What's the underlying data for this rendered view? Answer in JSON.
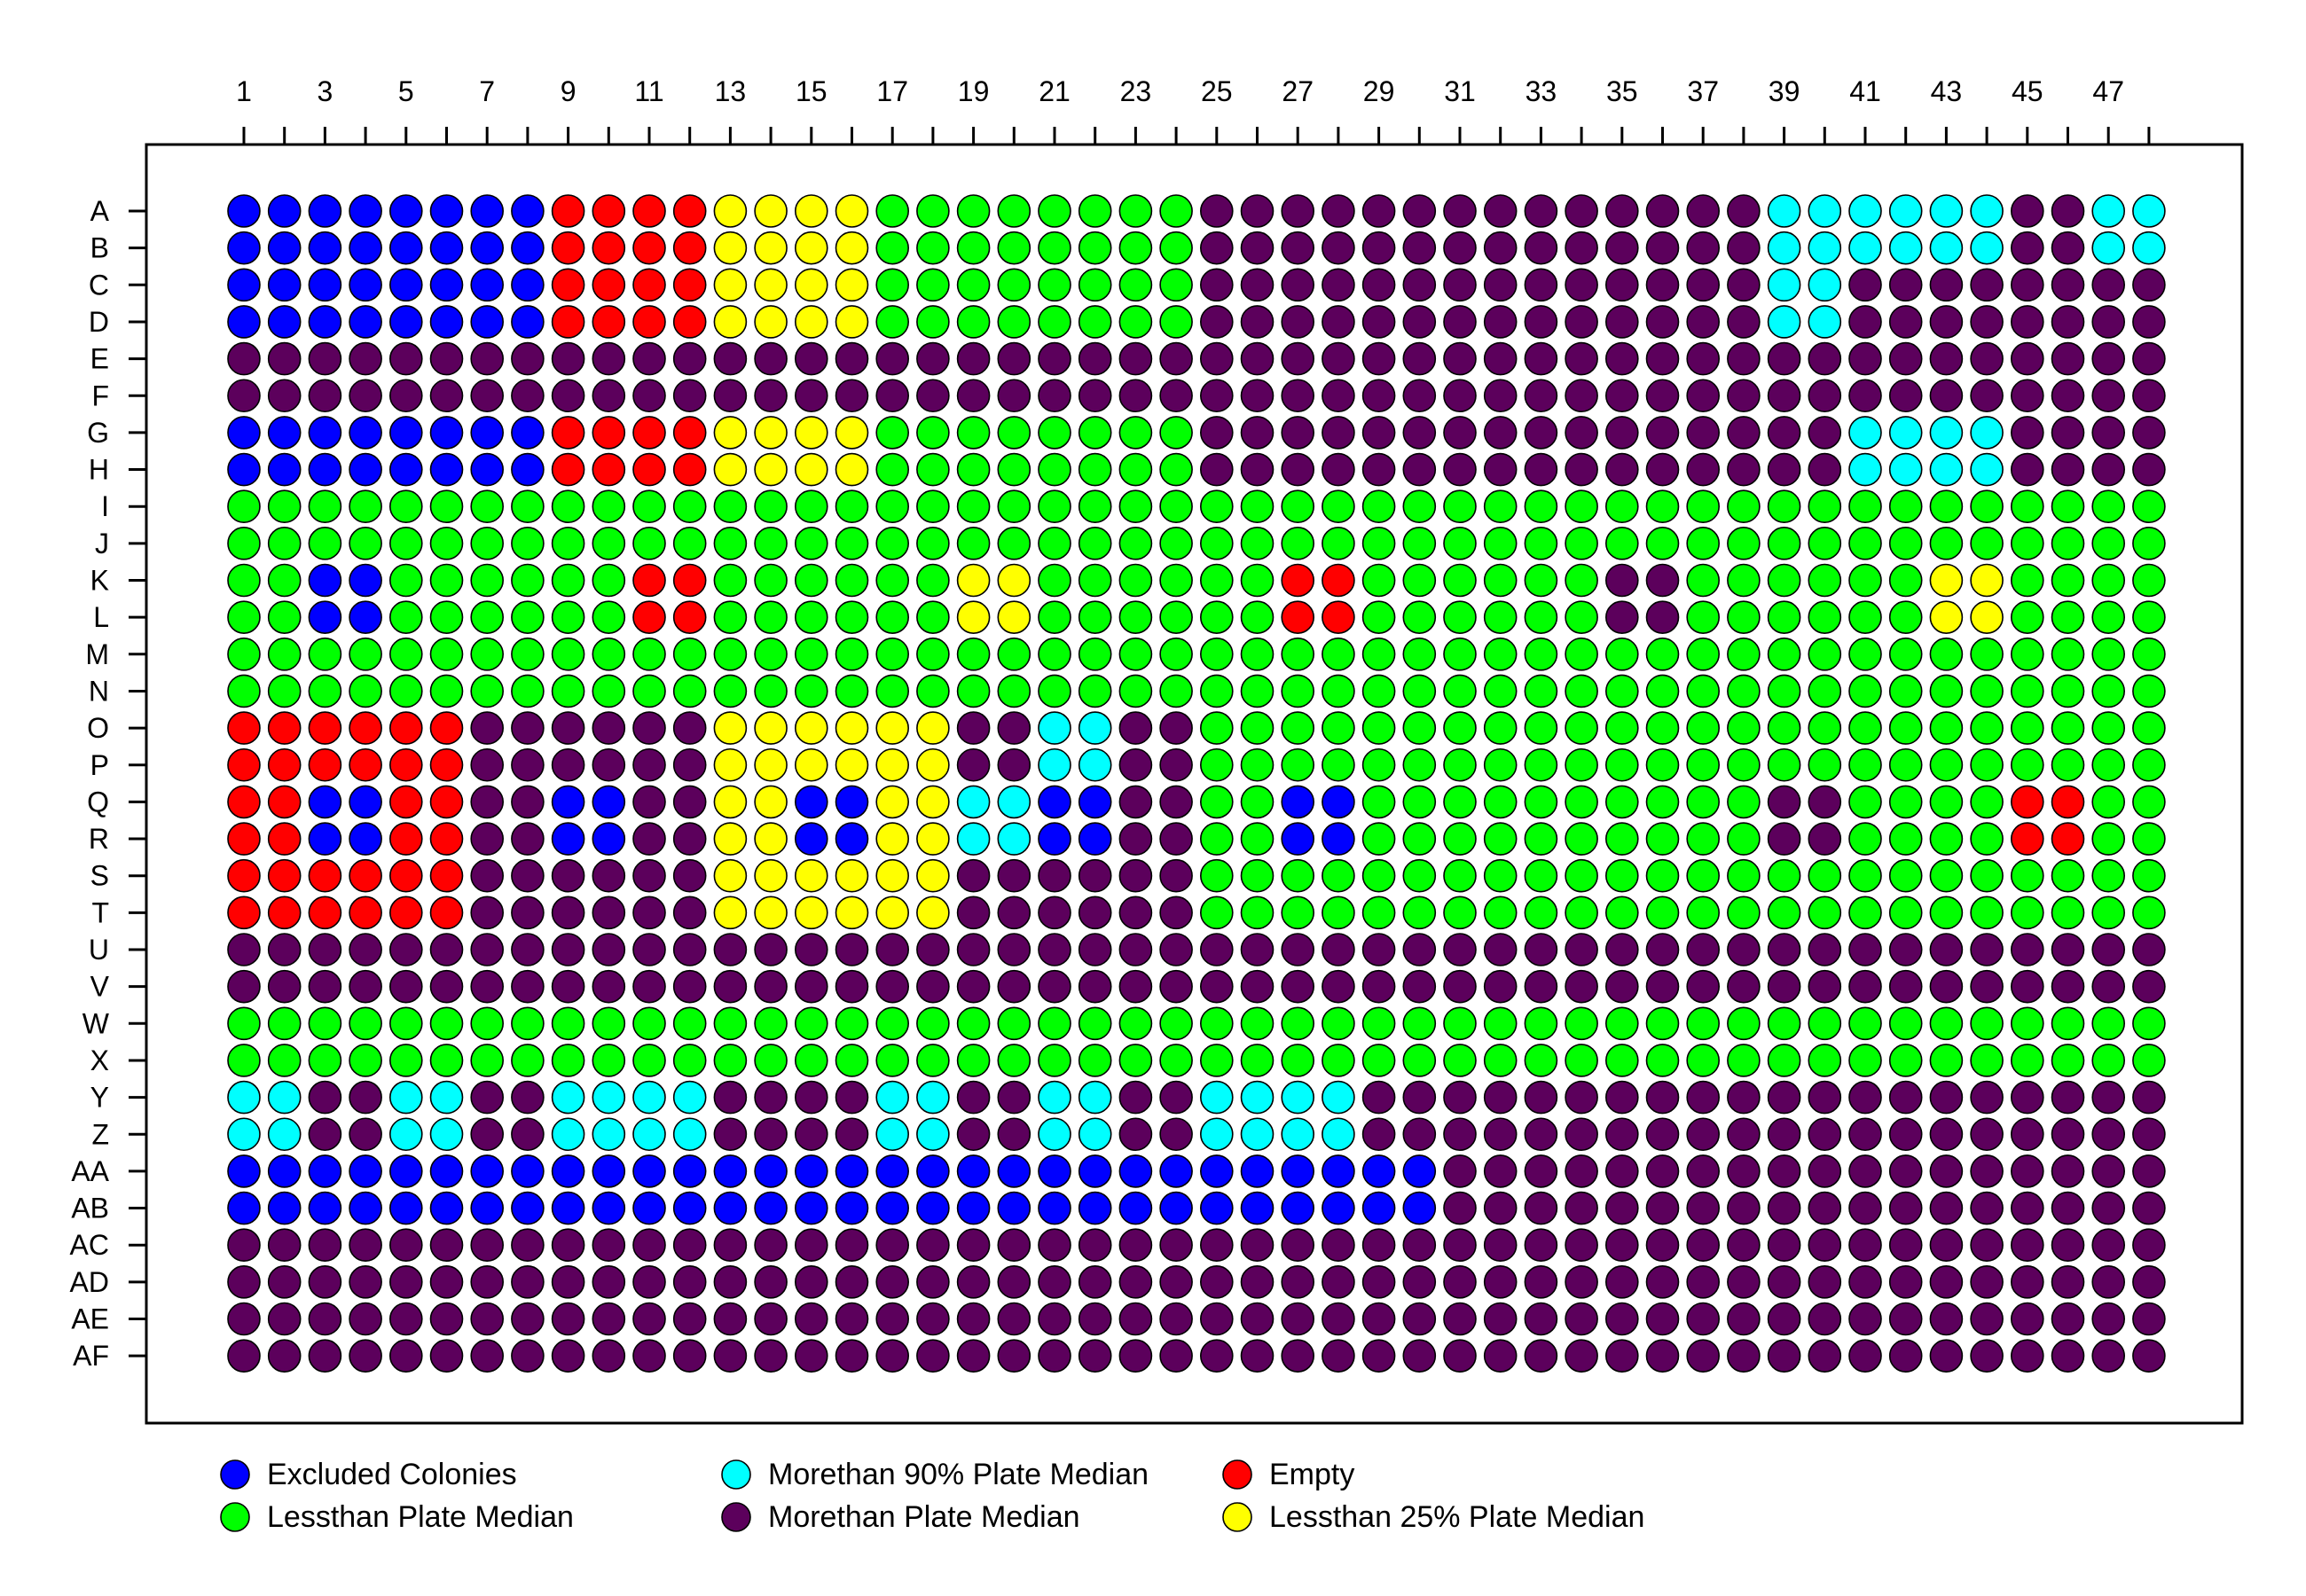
{
  "chart_data": {
    "type": "heatmap",
    "title": "",
    "xlabel": "",
    "ylabel": "",
    "columns": [
      1,
      2,
      3,
      4,
      5,
      6,
      7,
      8,
      9,
      10,
      11,
      12,
      13,
      14,
      15,
      16,
      17,
      18,
      19,
      20,
      21,
      22,
      23,
      24,
      25,
      26,
      27,
      28,
      29,
      30,
      31,
      32,
      33,
      34,
      35,
      36,
      37,
      38,
      39,
      40,
      41,
      42,
      43,
      44,
      45,
      46,
      47,
      48
    ],
    "x_tick_labels": [
      "1",
      "3",
      "5",
      "7",
      "9",
      "11",
      "13",
      "15",
      "17",
      "19",
      "21",
      "23",
      "25",
      "27",
      "29",
      "31",
      "33",
      "35",
      "37",
      "39",
      "41",
      "43",
      "45",
      "47"
    ],
    "rows": [
      "A",
      "B",
      "C",
      "D",
      "E",
      "F",
      "G",
      "H",
      "I",
      "J",
      "K",
      "L",
      "M",
      "N",
      "O",
      "P",
      "Q",
      "R",
      "S",
      "T",
      "U",
      "V",
      "W",
      "X",
      "Y",
      "Z",
      "AA",
      "AB",
      "AC",
      "AD",
      "AE",
      "AF"
    ],
    "categories": {
      "B": {
        "label": "Excluded Colonies",
        "color": "#0000ff"
      },
      "P": {
        "label": "Morethan Plate Median",
        "color": "#5c005c"
      },
      "G": {
        "label": "Lessthan Plate Median",
        "color": "#00ff00"
      },
      "R": {
        "label": "Empty",
        "color": "#ff0000"
      },
      "C": {
        "label": "Morethan 90% Plate Median",
        "color": "#00ffff"
      },
      "Y": {
        "label": "Lessthan 25% Plate Median",
        "color": "#ffff00"
      }
    },
    "legend_order": [
      "B",
      "G",
      "C",
      "P",
      "R",
      "Y"
    ],
    "legend_position": "bottom",
    "grid": false,
    "values": [
      "BBBBBBBBRRRRYYYYGGGGGGGGPPPPPPPPPPPPPPCCCCCCPPCC",
      "BBBBBBBBRRRRYYYYGGGGGGGGPPPPPPPPPPPPPPCCCCCCPPCC",
      "BBBBBBBBRRRRYYYYGGGGGGGGPPPPPPPPPPPPPPCCPPPPPPPP",
      "BBBBBBBBRRRRYYYYGGGGGGGGPPPPPPPPPPPPPPCCPPPPPPPP",
      "PPPPPPPPPPPPPPPPPPPPPPPPPPPPPPPPPPPPPPPPPPPPPPPP",
      "PPPPPPPPPPPPPPPPPPPPPPPPPPPPPPPPPPPPPPPPPPPPPPPP",
      "BBBBBBBBRRRRYYYYGGGGGGGGPPPPPPPPPPPPPPPPCCCCPPPP",
      "BBBBBBBBRRRRYYYYGGGGGGGGPPPPPPPPPPPPPPPPCCCCPPPP",
      "GGGGGGGGGGGGGGGGGGGGGGGGGGGGGGGGGGGGGGGGGGGGGGGG",
      "GGGGGGGGGGGGGGGGGGGGGGGGGGGGGGGGGGGGGGGGGGGGGGGG",
      "GGBBGGGGGGRRGGGGGGYYGGGGGGRRGGGGGGPPGGGGGGYYGGGG",
      "GGBBGGGGGGRRGGGGGGYYGGGGGGRRGGGGGGPPGGGGGGYYGGGG",
      "GGGGGGGGGGGGGGGGGGGGGGGGGGGGGGGGGGGGGGGGGGGGGGGG",
      "GGGGGGGGGGGGGGGGGGGGGGGGGGGGGGGGGGGGGGGGGGGGGGGG",
      "RRRRRRPPPPPPYYYYYYPPCCPPGGGGGGGGGGGGGGGGGGGGGGGG",
      "RRRRRRPPPPPPYYYYYYPPCCPPGGGGGGGGGGGGGGGGGGGGGGGG",
      "RRBBRRPPBBPPYYBBYYCCBBPPGGBBGGGGGGGGGGPPGGGGRRGG",
      "RRBBRRPPBBPPYYBBYYCCBBPPGGBBGGGGGGGGGGPPGGGGRRGG",
      "RRRRRRPPPPPPYYYYYYPPPPPPGGGGGGGGGGGGGGGGGGGGGGGG",
      "RRRRRRPPPPPPYYYYYYPPPPPPGGGGGGGGGGGGGGGGGGGGGGGG",
      "PPPPPPPPPPPPPPPPPPPPPPPPPPPPPPPPPPPPPPPPPPPPPPPP",
      "PPPPPPPPPPPPPPPPPPPPPPPPPPPPPPPPPPPPPPPPPPPPPPPP",
      "GGGGGGGGGGGGGGGGGGGGGGGGGGGGGGGGGGGGGGGGGGGGGGGG",
      "GGGGGGGGGGGGGGGGGGGGGGGGGGGGGGGGGGGGGGGGGGGGGGGG",
      "CCPPCCPPCCCCPPPPCCPPCCPPCCCCPPPPPPPPPPPPPPPPPPPP",
      "CCPPCCPPCCCCPPPPCCPPCCPPCCCCPPPPPPPPPPPPPPPPPPPP",
      "BBBBBBBBBBBBBBBBBBBBBBBBBBBBBBPPPPPPPPPPPPPPPPPP",
      "BBBBBBBBBBBBBBBBBBBBBBBBBBBBBBPPPPPPPPPPPPPPPPPP",
      "PPPPPPPPPPPPPPPPPPPPPPPPPPPPPPPPPPPPPPPPPPPPPPPP",
      "PPPPPPPPPPPPPPPPPPPPPPPPPPPPPPPPPPPPPPPPPPPPPPPP",
      "PPPPPPPPPPPPPPPPPPPPPPPPPPPPPPPPPPPPPPPPPPPPPPPP",
      "PPPPPPPPPPPPPPPPPPPPPPPPPPPPPPPPPPPPPPPPPPPPPPPP"
    ]
  }
}
